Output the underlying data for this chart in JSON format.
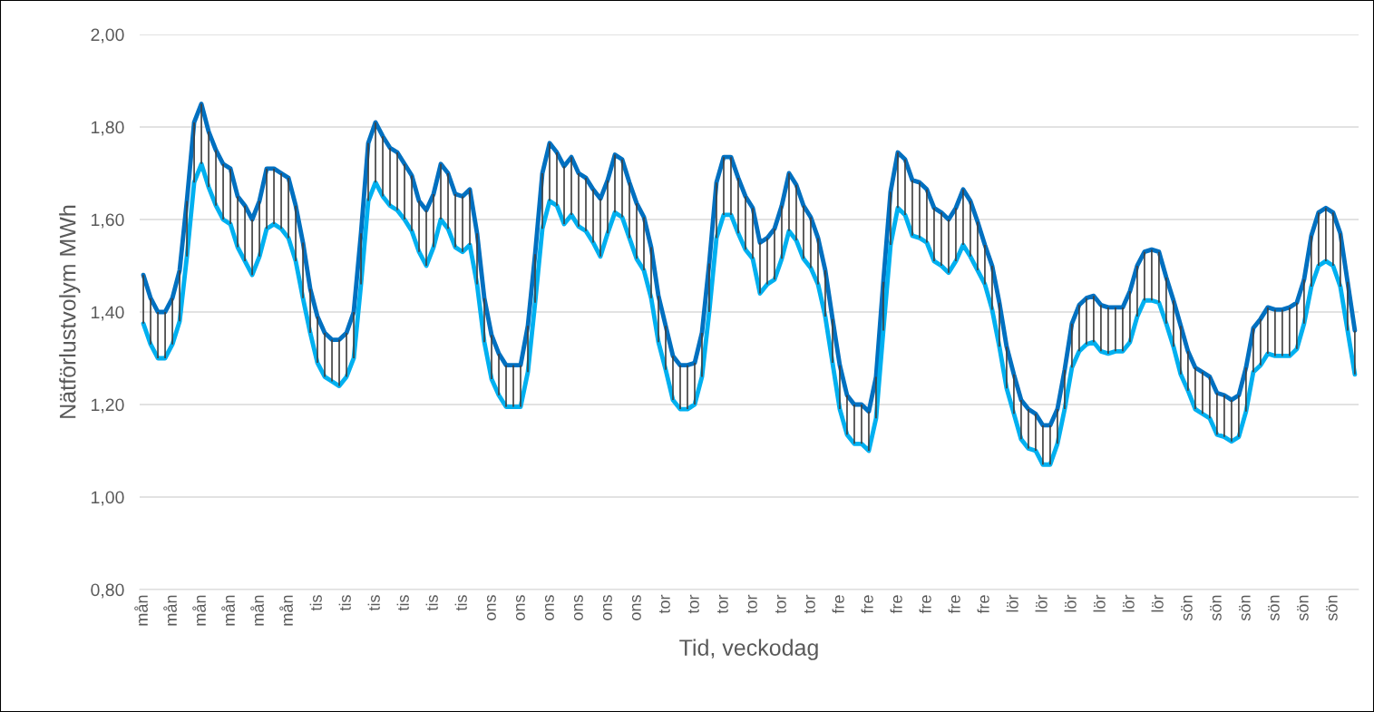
{
  "chart_data": {
    "type": "line",
    "xlabel": "Tid, veckodag",
    "ylabel": "Nätförlustvolym MWh",
    "categories": [
      "mån",
      null,
      null,
      null,
      "mån",
      null,
      null,
      null,
      "mån",
      null,
      null,
      null,
      "mån",
      null,
      null,
      null,
      "mån",
      null,
      null,
      null,
      "mån",
      null,
      null,
      null,
      "tis",
      null,
      null,
      null,
      "tis",
      null,
      null,
      null,
      "tis",
      null,
      null,
      null,
      "tis",
      null,
      null,
      null,
      "tis",
      null,
      null,
      null,
      "tis",
      null,
      null,
      null,
      "ons",
      null,
      null,
      null,
      "ons",
      null,
      null,
      null,
      "ons",
      null,
      null,
      null,
      "ons",
      null,
      null,
      null,
      "ons",
      null,
      null,
      null,
      "ons",
      null,
      null,
      null,
      "tor",
      null,
      null,
      null,
      "tor",
      null,
      null,
      null,
      "tor",
      null,
      null,
      null,
      "tor",
      null,
      null,
      null,
      "tor",
      null,
      null,
      null,
      "tor",
      null,
      null,
      null,
      "fre",
      null,
      null,
      null,
      "fre",
      null,
      null,
      null,
      "fre",
      null,
      null,
      null,
      "fre",
      null,
      null,
      null,
      "fre",
      null,
      null,
      null,
      "fre",
      null,
      null,
      null,
      "lör",
      null,
      null,
      null,
      "lör",
      null,
      null,
      null,
      "lör",
      null,
      null,
      null,
      "lör",
      null,
      null,
      null,
      "lör",
      null,
      null,
      null,
      "lör",
      null,
      null,
      null,
      "sön",
      null,
      null,
      null,
      "sön",
      null,
      null,
      null,
      "sön",
      null,
      null,
      null,
      "sön",
      null,
      null,
      null,
      "sön",
      null,
      null,
      null,
      "sön",
      null,
      null,
      null
    ],
    "series": [
      {
        "color": "#0070c0",
        "values": [
          1.48,
          1.43,
          1.4,
          1.4,
          1.43,
          1.49,
          1.64,
          1.81,
          1.85,
          1.79,
          1.75,
          1.72,
          1.71,
          1.65,
          1.63,
          1.6,
          1.64,
          1.71,
          1.71,
          1.7,
          1.69,
          1.63,
          1.55,
          1.45,
          1.39,
          1.355,
          1.34,
          1.34,
          1.355,
          1.4,
          1.57,
          1.765,
          1.81,
          1.78,
          1.755,
          1.745,
          1.72,
          1.695,
          1.64,
          1.62,
          1.655,
          1.72,
          1.7,
          1.655,
          1.65,
          1.665,
          1.57,
          1.43,
          1.35,
          1.31,
          1.285,
          1.285,
          1.285,
          1.37,
          1.525,
          1.7,
          1.765,
          1.745,
          1.715,
          1.735,
          1.7,
          1.69,
          1.665,
          1.645,
          1.685,
          1.74,
          1.73,
          1.68,
          1.635,
          1.605,
          1.54,
          1.435,
          1.37,
          1.305,
          1.285,
          1.285,
          1.29,
          1.355,
          1.505,
          1.68,
          1.735,
          1.735,
          1.69,
          1.65,
          1.625,
          1.55,
          1.56,
          1.58,
          1.63,
          1.7,
          1.675,
          1.63,
          1.605,
          1.56,
          1.49,
          1.385,
          1.285,
          1.22,
          1.2,
          1.2,
          1.185,
          1.26,
          1.465,
          1.66,
          1.745,
          1.73,
          1.685,
          1.68,
          1.665,
          1.625,
          1.615,
          1.6,
          1.625,
          1.665,
          1.64,
          1.595,
          1.545,
          1.5,
          1.42,
          1.325,
          1.265,
          1.21,
          1.19,
          1.18,
          1.155,
          1.155,
          1.19,
          1.275,
          1.375,
          1.415,
          1.43,
          1.435,
          1.415,
          1.41,
          1.41,
          1.41,
          1.445,
          1.5,
          1.53,
          1.535,
          1.53,
          1.475,
          1.425,
          1.37,
          1.315,
          1.28,
          1.27,
          1.26,
          1.225,
          1.22,
          1.21,
          1.22,
          1.28,
          1.365,
          1.385,
          1.41,
          1.405,
          1.405,
          1.41,
          1.42,
          1.47,
          1.565,
          1.615,
          1.625,
          1.615,
          1.57,
          1.465,
          1.36
        ],
        "errors": [
          [
            1.375,
            1.48
          ],
          [
            1.33,
            1.43
          ],
          [
            1.3,
            1.4
          ],
          [
            1.3,
            1.4
          ],
          [
            1.33,
            1.43
          ],
          [
            1.38,
            1.49
          ],
          [
            1.52,
            1.64
          ],
          [
            1.68,
            1.81
          ],
          [
            1.72,
            1.85
          ],
          [
            1.67,
            1.79
          ],
          [
            1.63,
            1.75
          ],
          [
            1.6,
            1.72
          ],
          [
            1.59,
            1.71
          ],
          [
            1.54,
            1.65
          ],
          [
            1.51,
            1.63
          ],
          [
            1.48,
            1.6
          ],
          [
            1.52,
            1.64
          ],
          [
            1.58,
            1.71
          ],
          [
            1.59,
            1.71
          ],
          [
            1.58,
            1.7
          ],
          [
            1.56,
            1.69
          ],
          [
            1.51,
            1.63
          ],
          [
            1.43,
            1.55
          ],
          [
            1.355,
            1.45
          ],
          [
            1.29,
            1.39
          ],
          [
            1.26,
            1.355
          ],
          [
            1.25,
            1.34
          ],
          [
            1.24,
            1.34
          ],
          [
            1.26,
            1.355
          ],
          [
            1.3,
            1.4
          ],
          [
            1.46,
            1.57
          ],
          [
            1.64,
            1.765
          ],
          [
            1.68,
            1.81
          ],
          [
            1.65,
            1.78
          ],
          [
            1.63,
            1.755
          ],
          [
            1.62,
            1.745
          ],
          [
            1.6,
            1.72
          ],
          [
            1.575,
            1.695
          ],
          [
            1.53,
            1.64
          ],
          [
            1.5,
            1.62
          ],
          [
            1.54,
            1.655
          ],
          [
            1.6,
            1.72
          ],
          [
            1.58,
            1.7
          ],
          [
            1.54,
            1.655
          ],
          [
            1.53,
            1.65
          ],
          [
            1.545,
            1.665
          ],
          [
            1.46,
            1.57
          ],
          [
            1.335,
            1.43
          ],
          [
            1.255,
            1.35
          ],
          [
            1.22,
            1.31
          ],
          [
            1.195,
            1.285
          ],
          [
            1.195,
            1.285
          ],
          [
            1.195,
            1.285
          ],
          [
            1.27,
            1.37
          ],
          [
            1.42,
            1.525
          ],
          [
            1.58,
            1.7
          ],
          [
            1.64,
            1.765
          ],
          [
            1.63,
            1.745
          ],
          [
            1.59,
            1.715
          ],
          [
            1.61,
            1.735
          ],
          [
            1.585,
            1.7
          ],
          [
            1.575,
            1.69
          ],
          [
            1.55,
            1.665
          ],
          [
            1.52,
            1.645
          ],
          [
            1.57,
            1.685
          ],
          [
            1.615,
            1.74
          ],
          [
            1.605,
            1.73
          ],
          [
            1.56,
            1.68
          ],
          [
            1.515,
            1.635
          ],
          [
            1.49,
            1.605
          ],
          [
            1.43,
            1.54
          ],
          [
            1.335,
            1.435
          ],
          [
            1.275,
            1.37
          ],
          [
            1.21,
            1.305
          ],
          [
            1.19,
            1.285
          ],
          [
            1.19,
            1.285
          ],
          [
            1.2,
            1.29
          ],
          [
            1.26,
            1.355
          ],
          [
            1.4,
            1.505
          ],
          [
            1.56,
            1.68
          ],
          [
            1.61,
            1.735
          ],
          [
            1.61,
            1.735
          ],
          [
            1.57,
            1.69
          ],
          [
            1.535,
            1.65
          ],
          [
            1.515,
            1.625
          ],
          [
            1.44,
            1.55
          ],
          [
            1.46,
            1.56
          ],
          [
            1.47,
            1.58
          ],
          [
            1.515,
            1.63
          ],
          [
            1.575,
            1.7
          ],
          [
            1.555,
            1.675
          ],
          [
            1.515,
            1.63
          ],
          [
            1.495,
            1.605
          ],
          [
            1.46,
            1.56
          ],
          [
            1.39,
            1.49
          ],
          [
            1.29,
            1.385
          ],
          [
            1.19,
            1.285
          ],
          [
            1.135,
            1.22
          ],
          [
            1.115,
            1.2
          ],
          [
            1.115,
            1.2
          ],
          [
            1.1,
            1.185
          ],
          [
            1.17,
            1.26
          ],
          [
            1.36,
            1.465
          ],
          [
            1.545,
            1.66
          ],
          [
            1.625,
            1.745
          ],
          [
            1.61,
            1.73
          ],
          [
            1.565,
            1.685
          ],
          [
            1.56,
            1.68
          ],
          [
            1.55,
            1.665
          ],
          [
            1.51,
            1.625
          ],
          [
            1.5,
            1.615
          ],
          [
            1.485,
            1.6
          ],
          [
            1.51,
            1.625
          ],
          [
            1.545,
            1.665
          ],
          [
            1.52,
            1.64
          ],
          [
            1.49,
            1.595
          ],
          [
            1.46,
            1.545
          ],
          [
            1.405,
            1.5
          ],
          [
            1.325,
            1.42
          ],
          [
            1.235,
            1.325
          ],
          [
            1.18,
            1.265
          ],
          [
            1.125,
            1.21
          ],
          [
            1.105,
            1.19
          ],
          [
            1.1,
            1.18
          ],
          [
            1.07,
            1.155
          ],
          [
            1.07,
            1.155
          ],
          [
            1.115,
            1.19
          ],
          [
            1.19,
            1.275
          ],
          [
            1.28,
            1.375
          ],
          [
            1.315,
            1.415
          ],
          [
            1.33,
            1.43
          ],
          [
            1.335,
            1.435
          ],
          [
            1.315,
            1.415
          ],
          [
            1.31,
            1.41
          ],
          [
            1.315,
            1.41
          ],
          [
            1.315,
            1.41
          ],
          [
            1.335,
            1.445
          ],
          [
            1.39,
            1.5
          ],
          [
            1.425,
            1.53
          ],
          [
            1.425,
            1.535
          ],
          [
            1.42,
            1.53
          ],
          [
            1.375,
            1.475
          ],
          [
            1.325,
            1.425
          ],
          [
            1.265,
            1.37
          ],
          [
            1.23,
            1.315
          ],
          [
            1.19,
            1.28
          ],
          [
            1.18,
            1.27
          ],
          [
            1.17,
            1.26
          ],
          [
            1.135,
            1.225
          ],
          [
            1.13,
            1.22
          ],
          [
            1.12,
            1.21
          ],
          [
            1.13,
            1.22
          ],
          [
            1.185,
            1.28
          ],
          [
            1.27,
            1.365
          ],
          [
            1.285,
            1.385
          ],
          [
            1.31,
            1.41
          ],
          [
            1.305,
            1.405
          ],
          [
            1.305,
            1.405
          ],
          [
            1.305,
            1.41
          ],
          [
            1.32,
            1.42
          ],
          [
            1.375,
            1.47
          ],
          [
            1.455,
            1.565
          ],
          [
            1.5,
            1.615
          ],
          [
            1.51,
            1.625
          ],
          [
            1.5,
            1.615
          ],
          [
            1.455,
            1.57
          ],
          [
            1.36,
            1.465
          ],
          [
            1.265,
            1.36
          ]
        ]
      },
      {
        "color": "#00b0f0",
        "values": [
          1.375,
          1.33,
          1.3,
          1.3,
          1.33,
          1.38,
          1.52,
          1.68,
          1.72,
          1.67,
          1.63,
          1.6,
          1.59,
          1.54,
          1.51,
          1.48,
          1.52,
          1.58,
          1.59,
          1.58,
          1.56,
          1.51,
          1.43,
          1.355,
          1.29,
          1.26,
          1.25,
          1.24,
          1.26,
          1.3,
          1.46,
          1.64,
          1.68,
          1.65,
          1.63,
          1.62,
          1.6,
          1.575,
          1.53,
          1.5,
          1.54,
          1.6,
          1.58,
          1.54,
          1.53,
          1.545,
          1.46,
          1.335,
          1.255,
          1.22,
          1.195,
          1.195,
          1.195,
          1.27,
          1.42,
          1.58,
          1.64,
          1.63,
          1.59,
          1.61,
          1.585,
          1.575,
          1.55,
          1.52,
          1.57,
          1.615,
          1.605,
          1.56,
          1.515,
          1.49,
          1.43,
          1.335,
          1.275,
          1.21,
          1.19,
          1.19,
          1.2,
          1.26,
          1.4,
          1.56,
          1.61,
          1.61,
          1.57,
          1.535,
          1.515,
          1.44,
          1.46,
          1.47,
          1.515,
          1.575,
          1.555,
          1.515,
          1.495,
          1.46,
          1.39,
          1.29,
          1.19,
          1.135,
          1.115,
          1.115,
          1.1,
          1.17,
          1.36,
          1.545,
          1.625,
          1.61,
          1.565,
          1.56,
          1.55,
          1.51,
          1.5,
          1.485,
          1.51,
          1.545,
          1.52,
          1.49,
          1.46,
          1.405,
          1.325,
          1.235,
          1.18,
          1.125,
          1.105,
          1.1,
          1.07,
          1.07,
          1.115,
          1.19,
          1.28,
          1.315,
          1.33,
          1.335,
          1.315,
          1.31,
          1.315,
          1.315,
          1.335,
          1.39,
          1.425,
          1.425,
          1.42,
          1.375,
          1.325,
          1.265,
          1.23,
          1.19,
          1.18,
          1.17,
          1.135,
          1.13,
          1.12,
          1.13,
          1.185,
          1.27,
          1.285,
          1.31,
          1.305,
          1.305,
          1.305,
          1.32,
          1.375,
          1.455,
          1.5,
          1.51,
          1.5,
          1.455,
          1.36,
          1.265
        ]
      }
    ],
    "ylim": [
      0.8,
      2.0
    ],
    "yticks": [
      {
        "value": 0.8,
        "label": "0,80"
      },
      {
        "value": 1.0,
        "label": "1,00"
      },
      {
        "value": 1.2,
        "label": "1,20"
      },
      {
        "value": 1.4,
        "label": "1,40"
      },
      {
        "value": 1.6,
        "label": "1,60"
      },
      {
        "value": 1.8,
        "label": "1,80"
      },
      {
        "value": 2.0,
        "label": "2,00"
      }
    ],
    "grid": "y",
    "legend": false,
    "marker": "none",
    "line_style": "solid"
  }
}
